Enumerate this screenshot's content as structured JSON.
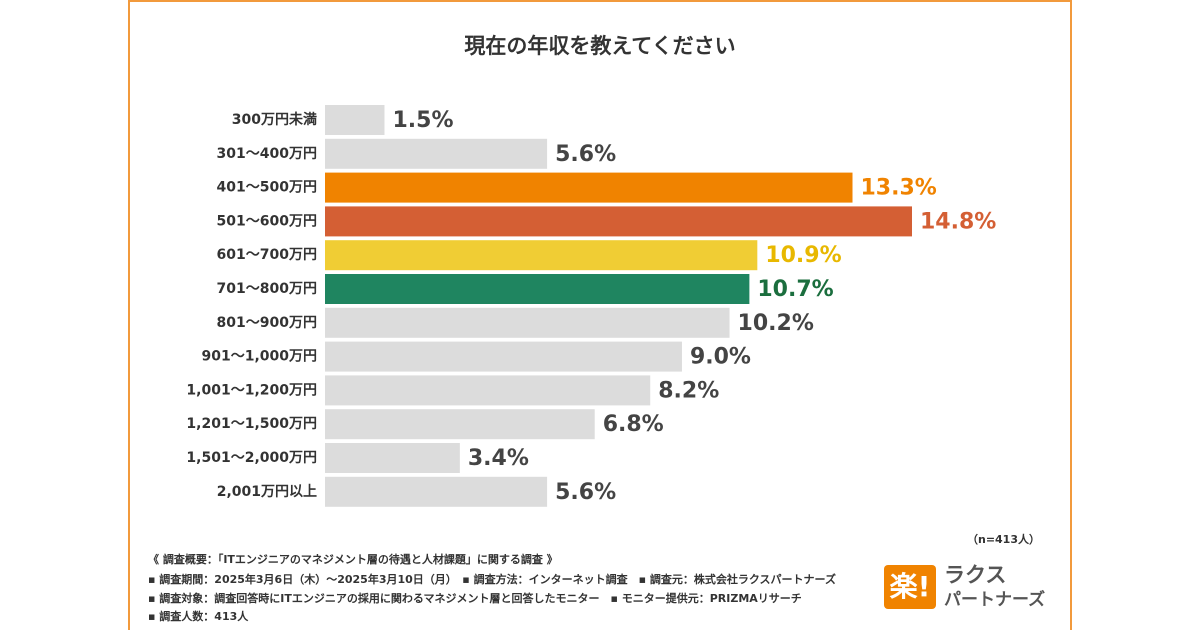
{
  "chart_data": {
    "type": "bar",
    "orientation": "horizontal",
    "title": "現在の年収を教えてください",
    "categories": [
      "300万円未満",
      "301〜400万円",
      "401〜500万円",
      "501〜600万円",
      "601〜700万円",
      "701〜800万円",
      "801〜900万円",
      "901〜1,000万円",
      "1,001〜1,200万円",
      "1,201〜1,500万円",
      "1,501〜2,000万円",
      "2,001万円以上"
    ],
    "values": [
      1.5,
      5.6,
      13.3,
      14.8,
      10.9,
      10.7,
      10.2,
      9.0,
      8.2,
      6.8,
      3.4,
      5.6
    ],
    "value_labels": [
      "1.5%",
      "5.6%",
      "13.3%",
      "14.8%",
      "10.9%",
      "10.7%",
      "10.2%",
      "9.0%",
      "8.2%",
      "6.8%",
      "3.4%",
      "5.6%"
    ],
    "colors": [
      "#dcdcdc",
      "#dcdcdc",
      "#f08300",
      "#d45f34",
      "#f0cd34",
      "#1f8560",
      "#dcdcdc",
      "#dcdcdc",
      "#dcdcdc",
      "#dcdcdc",
      "#dcdcdc",
      "#dcdcdc"
    ],
    "label_colors": [
      "#444444",
      "#444444",
      "#f08300",
      "#d45f34",
      "#e8b800",
      "#1b6e3e",
      "#444444",
      "#444444",
      "#444444",
      "#444444",
      "#444444",
      "#444444"
    ],
    "sample_note": "（n=413人）",
    "notes": [
      "《 調査概要：「ITエンジニアのマネジメント層の待遇と人材課題」に関する調査 》",
      "▪ 調査期間：2025年3月6日（木）〜2025年3月10日（月）　▪ 調査方法：インターネット調査　▪ 調査元：株式会社ラクスパートナーズ",
      "▪ 調査対象：調査回答時にITエンジニアの採用に関わるマネジメント層と回答したモニター　▪ モニター提供元：PRIZMAリサーチ",
      "▪ 調査人数：413人"
    ],
    "logo": {
      "mark": "楽!",
      "line1": "ラクス",
      "line2": "パートナーズ"
    }
  }
}
